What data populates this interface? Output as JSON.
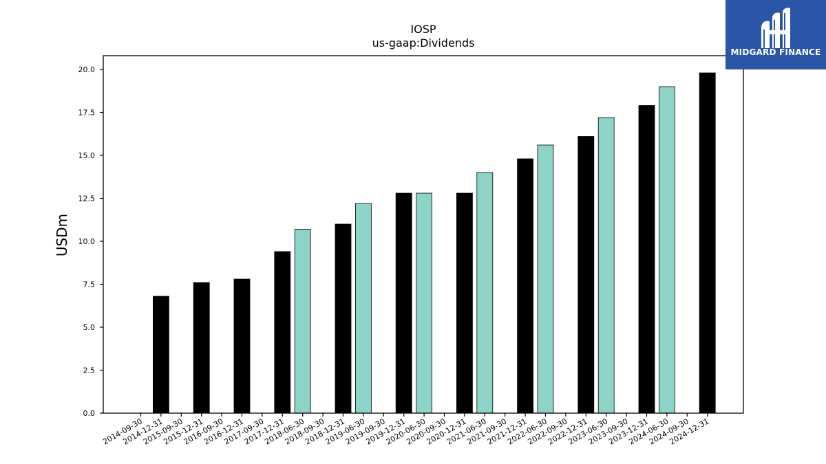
{
  "chart_data": {
    "type": "bar",
    "title": "IOSP",
    "subtitle": "us-gaap:Dividends",
    "ylabel": "USDm",
    "xlabel": "",
    "ylim": [
      0,
      20.8
    ],
    "yticks": [
      "0.0",
      "2.5",
      "5.0",
      "7.5",
      "10.0",
      "12.5",
      "15.0",
      "17.5",
      "20.0"
    ],
    "categories": [
      "2014-09-30",
      "2014-12-31",
      "2015-09-30",
      "2015-12-31",
      "2016-09-30",
      "2016-12-31",
      "2017-09-30",
      "2017-12-31",
      "2018-06-30",
      "2018-09-30",
      "2018-12-31",
      "2019-06-30",
      "2019-09-30",
      "2019-12-31",
      "2020-06-30",
      "2020-09-30",
      "2020-12-31",
      "2021-06-30",
      "2021-09-30",
      "2021-12-31",
      "2022-06-30",
      "2022-09-30",
      "2022-12-31",
      "2023-06-30",
      "2023-09-30",
      "2023-12-31",
      "2024-06-30",
      "2024-09-30",
      "2024-12-31"
    ],
    "bars": [
      {
        "category": "2014-12-31",
        "value": 6.8,
        "color": "#000000"
      },
      {
        "category": "2015-12-31",
        "value": 7.6,
        "color": "#000000"
      },
      {
        "category": "2016-12-31",
        "value": 7.8,
        "color": "#000000"
      },
      {
        "category": "2017-12-31",
        "value": 9.4,
        "color": "#000000"
      },
      {
        "category": "2018-06-30",
        "value": 10.7,
        "color": "#8dd3c7"
      },
      {
        "category": "2018-12-31",
        "value": 11.0,
        "color": "#000000"
      },
      {
        "category": "2019-06-30",
        "value": 12.2,
        "color": "#8dd3c7"
      },
      {
        "category": "2019-12-31",
        "value": 12.8,
        "color": "#000000"
      },
      {
        "category": "2020-06-30",
        "value": 12.8,
        "color": "#8dd3c7"
      },
      {
        "category": "2020-12-31",
        "value": 12.8,
        "color": "#000000"
      },
      {
        "category": "2021-06-30",
        "value": 14.0,
        "color": "#8dd3c7"
      },
      {
        "category": "2021-12-31",
        "value": 14.8,
        "color": "#000000"
      },
      {
        "category": "2022-06-30",
        "value": 15.6,
        "color": "#8dd3c7"
      },
      {
        "category": "2022-12-31",
        "value": 16.1,
        "color": "#000000"
      },
      {
        "category": "2023-06-30",
        "value": 17.2,
        "color": "#8dd3c7"
      },
      {
        "category": "2023-12-31",
        "value": 17.9,
        "color": "#000000"
      },
      {
        "category": "2024-06-30",
        "value": 19.0,
        "color": "#8dd3c7"
      },
      {
        "category": "2024-12-31",
        "value": 19.8,
        "color": "#000000"
      }
    ],
    "grid": false,
    "legend": "none"
  },
  "logo": {
    "text": "MIDGARD FINANCE",
    "background": "#2b56a8",
    "icon": "midgard-logo-icon"
  }
}
